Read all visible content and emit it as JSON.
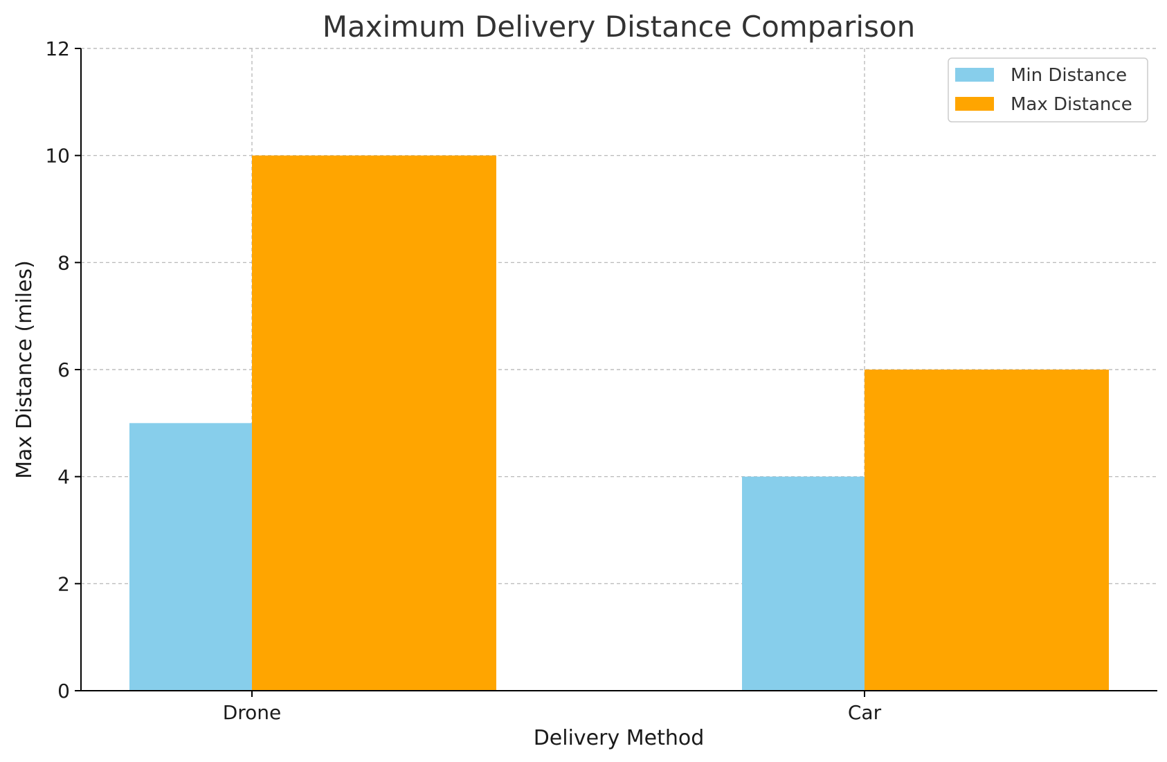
{
  "chart_data": {
    "type": "bar",
    "title": "Maximum Delivery Distance Comparison",
    "xlabel": "Delivery Method",
    "ylabel": "Max Distance (miles)",
    "categories": [
      "Drone",
      "Car"
    ],
    "series": [
      {
        "name": "Min Distance",
        "values": [
          5,
          4
        ],
        "color": "#87CEEB"
      },
      {
        "name": "Max Distance",
        "values": [
          10,
          6
        ],
        "color": "#FFA500"
      }
    ],
    "ylim": [
      0,
      12
    ],
    "yticks": [
      0,
      2,
      4,
      6,
      8,
      10,
      12
    ],
    "grid": true,
    "legend_position": "top-right"
  }
}
